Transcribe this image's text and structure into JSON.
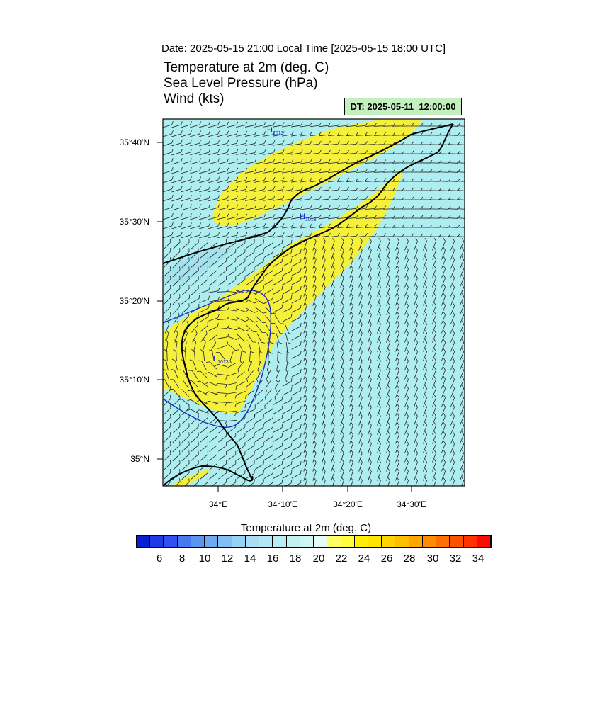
{
  "header": {
    "date_line": "Date: 2025-05-15  21:00 Local Time [2025-05-15  18:00 UTC]",
    "title_lines": [
      "Temperature at 2m   (deg. C)",
      "Sea Level Pressure   (hPa)",
      "Wind   (kts)"
    ],
    "dt_label": "DT: 2025-05-11_12:00:00"
  },
  "map": {
    "lat_labels": [
      "35°40'N",
      "35°30'N",
      "35°20'N",
      "35°10'N",
      "35°N"
    ],
    "lon_labels": [
      "34°E",
      "34°10'E",
      "34°20'E",
      "34°30'E"
    ],
    "pressure_labels": [
      {
        "letter": "H",
        "value": "1013"
      },
      {
        "letter": "H",
        "value": "1013"
      },
      {
        "letter": "L",
        "value": "1013"
      }
    ],
    "colors": {
      "warm_fill": "#f5f03c",
      "cool_fill": "#aeeef0",
      "cooler_fill": "#a4e2ee",
      "isobar": "#1a2cc8",
      "coast": "#000000"
    }
  },
  "colorbar": {
    "title": "Temperature at 2m  (deg. C)",
    "tick_labels": [
      "6",
      "8",
      "10",
      "12",
      "14",
      "16",
      "18",
      "20",
      "22",
      "24",
      "26",
      "28",
      "30",
      "32",
      "34"
    ],
    "colors": [
      "#0a1ed2",
      "#1e3ce6",
      "#3250f0",
      "#4678f0",
      "#5a96f0",
      "#6eaaf0",
      "#82c0f4",
      "#96d2f4",
      "#aadcf6",
      "#b4e6f6",
      "#b6eef4",
      "#c0f2f2",
      "#cef6f4",
      "#e6fbf6",
      "#ffff64",
      "#ffff3c",
      "#fff000",
      "#ffe600",
      "#ffd200",
      "#ffbe00",
      "#ffa500",
      "#ff8c00",
      "#ff6e00",
      "#ff5000",
      "#ff3200",
      "#ff0a00"
    ]
  }
}
